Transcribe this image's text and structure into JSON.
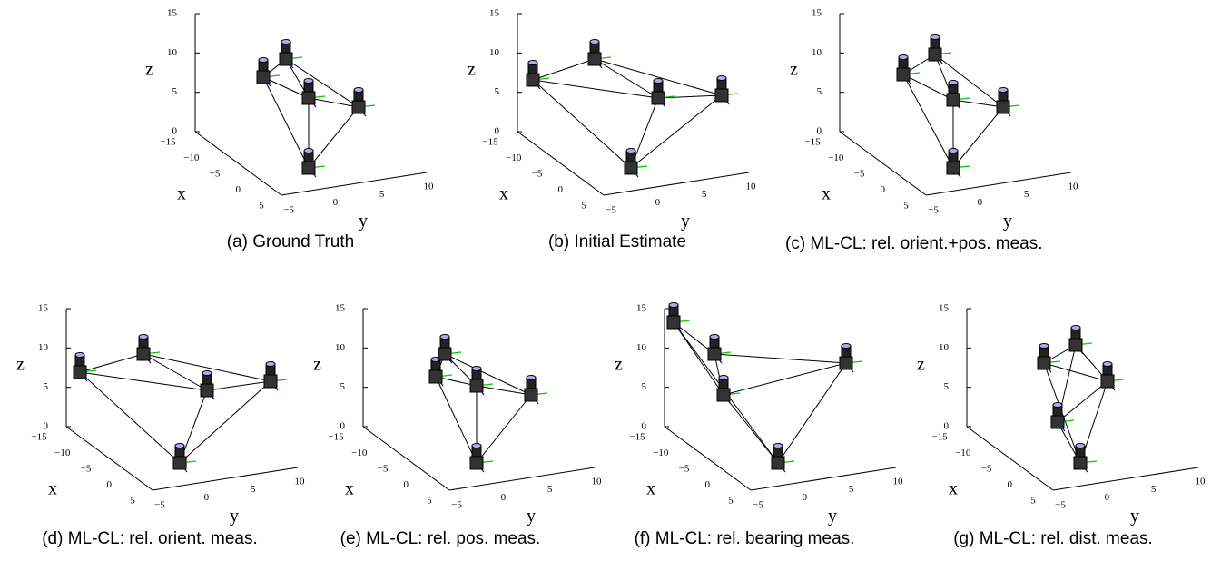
{
  "axes": {
    "z_label": "z",
    "x_label": "x",
    "y_label": "y",
    "zticks": [
      "15",
      "10",
      "5",
      "0"
    ],
    "xticks": [
      "−15",
      "−10",
      "−5",
      "0",
      "5"
    ],
    "yticks": [
      "−5",
      "0",
      "5",
      "10"
    ]
  },
  "panels": [
    {
      "caption": "(a) Ground Truth"
    },
    {
      "caption": "(b) Initial Estimate"
    },
    {
      "caption": "(c) ML-CL: rel. orient.+pos. meas."
    },
    {
      "caption": "(d) ML-CL: rel. orient. meas."
    },
    {
      "caption": "(e) ML-CL: rel. pos. meas."
    },
    {
      "caption": "(f) ML-CL: rel. bearing meas."
    },
    {
      "caption": "(g) ML-CL: rel. dist. meas."
    }
  ]
}
